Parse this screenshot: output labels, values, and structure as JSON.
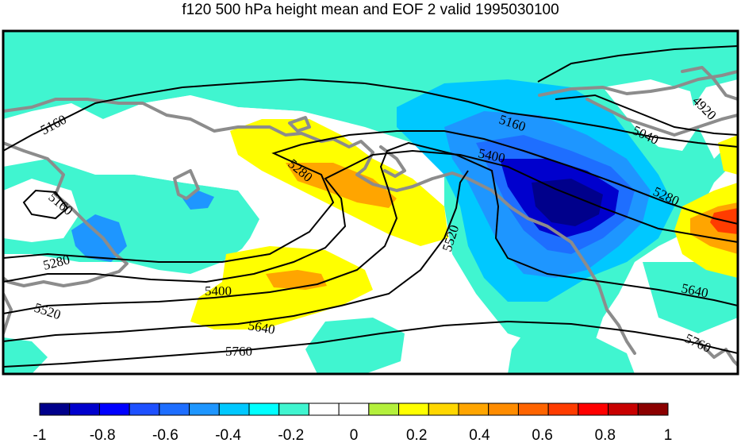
{
  "title": "f120 500 hPa height mean and EOF 2 valid 1995030100",
  "colors": {
    "frame": "#000000",
    "coastline": "#8c8c8c",
    "contour": "#000000",
    "background": "#ffffff"
  },
  "contour_labels": [
    "5160",
    "5160",
    "5160",
    "5040",
    "4920",
    "5400",
    "5280",
    "5280",
    "5520",
    "5280",
    "5400",
    "5520",
    "5640",
    "5760",
    "5640",
    "5760"
  ],
  "colorbar": {
    "colors": [
      "#00008b",
      "#0000cd",
      "#0000ff",
      "#1e50ff",
      "#1e6eff",
      "#1e96ff",
      "#00c8ff",
      "#00ffff",
      "#40f5d0",
      "#ffffff",
      "#ffffff",
      "#b4f03c",
      "#ffff00",
      "#ffd700",
      "#ffa500",
      "#ff8c00",
      "#ff6400",
      "#ff3c00",
      "#ff0000",
      "#c80000",
      "#8b0000"
    ],
    "tick_labels": [
      "-1",
      "-0.8",
      "-0.6",
      "-0.4",
      "-0.2",
      "0",
      "0.2",
      "0.4",
      "0.6",
      "0.8",
      "1"
    ]
  }
}
